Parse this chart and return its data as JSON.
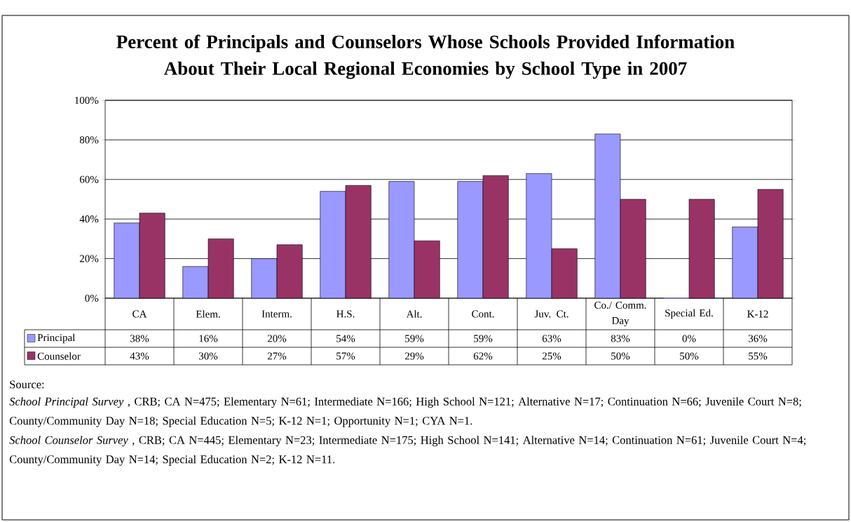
{
  "chart_data": {
    "type": "bar",
    "title": "Percent of Principals and Counselors Whose Schools Provided Information About Their Local Regional Economies by School Type in 2007",
    "categories": [
      "CA",
      "Elem.",
      "Interm.",
      "H.S.",
      "Alt.",
      "Cont.",
      "Juv. Ct.",
      "Co./ Comm. Day",
      "Special Ed.",
      "K-12"
    ],
    "series": [
      {
        "name": "Principal",
        "color": "#9999ff",
        "values": [
          38,
          16,
          20,
          54,
          59,
          59,
          63,
          83,
          0,
          36
        ],
        "value_labels": [
          "38%",
          "16%",
          "20%",
          "54%",
          "59%",
          "59%",
          "63%",
          "83%",
          "0%",
          "36%"
        ]
      },
      {
        "name": "Counselor",
        "color": "#993366",
        "values": [
          43,
          30,
          27,
          57,
          29,
          62,
          25,
          50,
          50,
          55
        ],
        "value_labels": [
          "43%",
          "30%",
          "27%",
          "57%",
          "29%",
          "62%",
          "25%",
          "50%",
          "50%",
          "55%"
        ]
      }
    ],
    "ylim": [
      0,
      100
    ],
    "yticks": [
      {
        "value": 0,
        "label": "0%"
      },
      {
        "value": 20,
        "label": "20%"
      },
      {
        "value": 40,
        "label": "40%"
      },
      {
        "value": 60,
        "label": "60%"
      },
      {
        "value": 80,
        "label": "80%"
      },
      {
        "value": 100,
        "label": "100%"
      }
    ],
    "grid": "y",
    "legend": "bottom",
    "annotations": [
      "Source:",
      "*School Principal Survey* , CRB; CA N=475; Elementary N=61; Intermediate N=166; High School N=121; Alternative N=17; Continuation N=66; Juvenile Court N=8; County/Community Day N=18; Special Education N=5; K-12 N=1; Opportunity N=1; CYA N=1.",
      "*School Counselor Survey* , CRB; CA N=445; Elementary N=23; Intermediate N=175; High School N=141; Alternative N=14; Continuation N=61; Juvenile Court N=4; County/Community Day N=14; Special Education N=2; K-12 N=11."
    ]
  }
}
